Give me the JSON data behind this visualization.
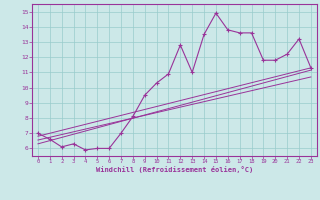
{
  "xlabel": "Windchill (Refroidissement éolien,°C)",
  "background_color": "#cce8e8",
  "line_color": "#993399",
  "grid_color": "#99cccc",
  "xlim": [
    -0.5,
    23.5
  ],
  "ylim": [
    5.5,
    15.5
  ],
  "xticks": [
    0,
    1,
    2,
    3,
    4,
    5,
    6,
    7,
    8,
    9,
    10,
    11,
    12,
    13,
    14,
    15,
    16,
    17,
    18,
    19,
    20,
    21,
    22,
    23
  ],
  "yticks": [
    6,
    7,
    8,
    9,
    10,
    11,
    12,
    13,
    14,
    15
  ],
  "main_series_x": [
    0,
    1,
    2,
    3,
    4,
    5,
    6,
    7,
    8,
    9,
    10,
    11,
    12,
    13,
    14,
    15,
    16,
    17,
    18,
    19,
    20,
    21,
    22,
    23
  ],
  "main_series_y": [
    7.0,
    6.6,
    6.1,
    6.3,
    5.9,
    6.0,
    6.0,
    7.0,
    8.1,
    9.5,
    10.3,
    10.9,
    12.8,
    11.0,
    13.5,
    14.9,
    13.8,
    13.6,
    13.6,
    11.8,
    11.8,
    12.2,
    13.2,
    11.3
  ],
  "line2_x": [
    0,
    23
  ],
  "line2_y": [
    6.8,
    11.3
  ],
  "line3_x": [
    0,
    23
  ],
  "line3_y": [
    6.3,
    11.15
  ],
  "line4_x": [
    0,
    23
  ],
  "line4_y": [
    6.55,
    10.7
  ]
}
